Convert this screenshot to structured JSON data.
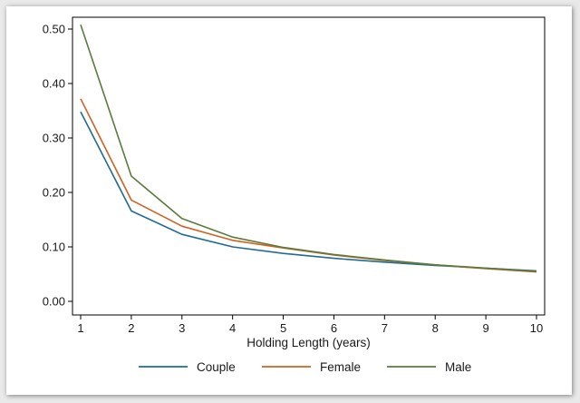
{
  "chart_data": {
    "type": "line",
    "title": "",
    "xlabel": "Holding Length (years)",
    "ylabel": "",
    "x": [
      1,
      2,
      3,
      4,
      5,
      6,
      7,
      8,
      9,
      10
    ],
    "xlim": [
      1,
      10
    ],
    "ylim": [
      0,
      0.52
    ],
    "x_ticks": [
      "1",
      "2",
      "3",
      "4",
      "5",
      "6",
      "7",
      "8",
      "9",
      "10"
    ],
    "y_ticks": [
      0,
      0.1,
      0.2,
      0.3,
      0.4,
      0.5
    ],
    "y_tick_labels": [
      "0.00",
      "0.10",
      "0.20",
      "0.30",
      "0.40",
      "0.50"
    ],
    "grid": false,
    "legend_position": "bottom",
    "series": [
      {
        "name": "Couple",
        "color": "#1f6b97",
        "values": [
          0.348,
          0.166,
          0.123,
          0.1,
          0.088,
          0.079,
          0.072,
          0.066,
          0.061,
          0.056
        ]
      },
      {
        "name": "Female",
        "color": "#d06220",
        "values": [
          0.372,
          0.186,
          0.138,
          0.112,
          0.098,
          0.085,
          0.075,
          0.067,
          0.06,
          0.054
        ]
      },
      {
        "name": "Male",
        "color": "#5a7b3a",
        "values": [
          0.508,
          0.23,
          0.152,
          0.118,
          0.099,
          0.086,
          0.076,
          0.067,
          0.061,
          0.055
        ]
      }
    ]
  }
}
